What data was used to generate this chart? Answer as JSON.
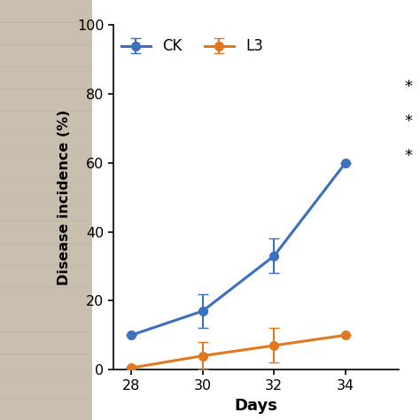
{
  "days": [
    28,
    30,
    32,
    34
  ],
  "ck_values": [
    10,
    17,
    33,
    60
  ],
  "ck_errors_up": [
    0,
    5,
    5,
    0
  ],
  "ck_errors_down": [
    0,
    5,
    5,
    0
  ],
  "l3_values": [
    0.5,
    4,
    7,
    10
  ],
  "l3_errors_up": [
    0,
    4,
    5,
    0
  ],
  "l3_errors_down": [
    0,
    4,
    5,
    0
  ],
  "ck_color": "#3c6fbe",
  "l3_color": "#e07820",
  "xlabel": "Days",
  "ylabel": "Disease incidence (%)",
  "ylim": [
    0,
    100
  ],
  "yticks": [
    0,
    20,
    40,
    60,
    80,
    100
  ],
  "xlim": [
    27.5,
    35.5
  ],
  "xticks": [
    28,
    30,
    32,
    34
  ],
  "legend_ck": "CK",
  "legend_l3": "L3",
  "marker_size": 7,
  "linewidth": 2.2,
  "capsize": 4,
  "bg_color": "#e8e0d0",
  "plot_bg": "#ffffff"
}
